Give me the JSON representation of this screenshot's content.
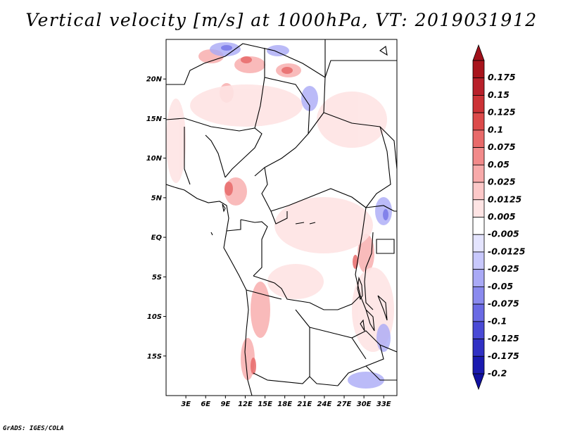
{
  "title": "Vertical velocity [m/s] at 1000hPa, VT: 2019031912",
  "credit": "GrADS: IGES/COLA",
  "map": {
    "lon_range": [
      0,
      35
    ],
    "lat_range": [
      -20,
      25
    ],
    "lat_ticks": [
      {
        "value": 20,
        "label": "20N"
      },
      {
        "value": 15,
        "label": "15N"
      },
      {
        "value": 10,
        "label": "10N"
      },
      {
        "value": 5,
        "label": "5N"
      },
      {
        "value": 0,
        "label": "EQ"
      },
      {
        "value": -5,
        "label": "5S"
      },
      {
        "value": -10,
        "label": "10S"
      },
      {
        "value": -15,
        "label": "15S"
      }
    ],
    "lon_ticks": [
      {
        "value": 3,
        "label": "3E"
      },
      {
        "value": 6,
        "label": "6E"
      },
      {
        "value": 9,
        "label": "9E"
      },
      {
        "value": 12,
        "label": "12E"
      },
      {
        "value": 15,
        "label": "15E"
      },
      {
        "value": 18,
        "label": "18E"
      },
      {
        "value": 21,
        "label": "21E"
      },
      {
        "value": 24,
        "label": "24E"
      },
      {
        "value": 27,
        "label": "27E"
      },
      {
        "value": 30,
        "label": "30E"
      },
      {
        "value": 33,
        "label": "33E"
      }
    ]
  },
  "colorbar": {
    "levels": [
      {
        "label": "0.175",
        "color": "#a8141c"
      },
      {
        "label": "0.15",
        "color": "#b8202a"
      },
      {
        "label": "0.125",
        "color": "#cc3236"
      },
      {
        "label": "0.1",
        "color": "#dc4a4a"
      },
      {
        "label": "0.075",
        "color": "#e86a6a"
      },
      {
        "label": "0.05",
        "color": "#f28a8a"
      },
      {
        "label": "0.025",
        "color": "#f8aaaa"
      },
      {
        "label": "0.0125",
        "color": "#fcc8c8"
      },
      {
        "label": "0.005",
        "color": "#fee4e4"
      },
      {
        "label": "-0.005",
        "color": "#ffffff"
      },
      {
        "label": "-0.0125",
        "color": "#e4e4fe"
      },
      {
        "label": "-0.025",
        "color": "#c8c8fc"
      },
      {
        "label": "-0.05",
        "color": "#aaaaf6"
      },
      {
        "label": "-0.075",
        "color": "#8a8aee"
      },
      {
        "label": "-0.1",
        "color": "#6a6ae4"
      },
      {
        "label": "-0.125",
        "color": "#4a4ad6"
      },
      {
        "label": "-0.175",
        "color": "#3030c4"
      },
      {
        "label": "-0.2",
        "color": "#1a1ab0"
      }
    ],
    "top_triangle_color": "#a0101a",
    "bottom_triangle_color": "#1010a0"
  }
}
